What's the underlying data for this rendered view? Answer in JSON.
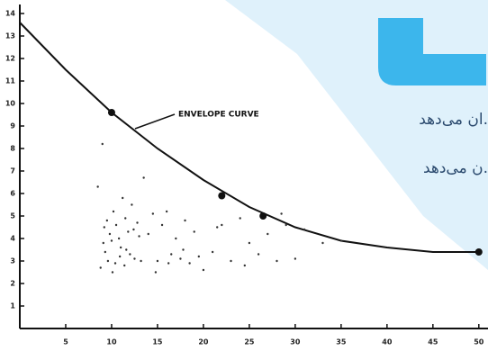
{
  "chart_data": {
    "type": "scatter",
    "annotation": "ENVELOPE CURVE",
    "xlim": [
      0,
      51
    ],
    "ylim": [
      0,
      14.4
    ],
    "xticks": [
      5,
      10,
      15,
      20,
      25,
      30,
      35,
      40,
      45,
      50
    ],
    "yticks": [
      1,
      2,
      3,
      4,
      5,
      6,
      7,
      8,
      9,
      10,
      11,
      12,
      13,
      14
    ],
    "series": [
      {
        "type": "line",
        "color": "#111111",
        "x": [
          0,
          5,
          10,
          15,
          20,
          25,
          30,
          35,
          40,
          45,
          50
        ],
        "values": [
          13.6,
          11.5,
          9.6,
          8.0,
          6.6,
          5.4,
          4.5,
          3.9,
          3.6,
          3.4,
          3.4
        ]
      },
      {
        "type": "scatter",
        "marker": "large",
        "color": "#111111",
        "x": [
          10,
          22,
          26.5,
          50
        ],
        "values": [
          9.6,
          5.9,
          5.0,
          3.4
        ]
      },
      {
        "type": "scatter",
        "marker": "small",
        "color": "#333333",
        "x": [
          8.5,
          9,
          9.5,
          9.2,
          9.8,
          10,
          10.2,
          10.5,
          10.8,
          11,
          11.2,
          11.5,
          11.8,
          12,
          12.2,
          9.3,
          9.6,
          10.4,
          10.9,
          11.4,
          12.5,
          12.8,
          13,
          13.2,
          8.8,
          9.1,
          10.1,
          11.6,
          12.4,
          13.5,
          14,
          14.5,
          15,
          15.5,
          16,
          16.5,
          17,
          17.5,
          18,
          18.5,
          19,
          19.5,
          20,
          14.8,
          16.2,
          17.8,
          21,
          22,
          23,
          24,
          25,
          26,
          27,
          28,
          28.5,
          29,
          30,
          31,
          33,
          35,
          21.5,
          24.5
        ],
        "values": [
          6.3,
          8.2,
          4.8,
          4.5,
          4.2,
          3.9,
          5.2,
          4.6,
          4.0,
          3.6,
          5.8,
          4.9,
          4.3,
          3.3,
          5.5,
          3.4,
          3.0,
          2.9,
          3.2,
          2.8,
          3.1,
          4.7,
          4.1,
          3.0,
          2.7,
          3.8,
          2.5,
          3.5,
          4.4,
          6.7,
          4.2,
          5.1,
          3.0,
          4.6,
          5.2,
          3.3,
          4.0,
          3.1,
          4.8,
          2.9,
          4.3,
          3.2,
          2.6,
          2.5,
          2.9,
          3.5,
          3.4,
          4.6,
          3.0,
          4.9,
          3.8,
          3.3,
          4.2,
          3.0,
          5.1,
          4.6,
          3.1,
          4.4,
          3.8,
          3.9,
          4.5,
          2.8
        ]
      }
    ]
  },
  "watermark": {
    "lines": [
      "ان می‌دهد.",
      "ن می‌دهد."
    ]
  }
}
